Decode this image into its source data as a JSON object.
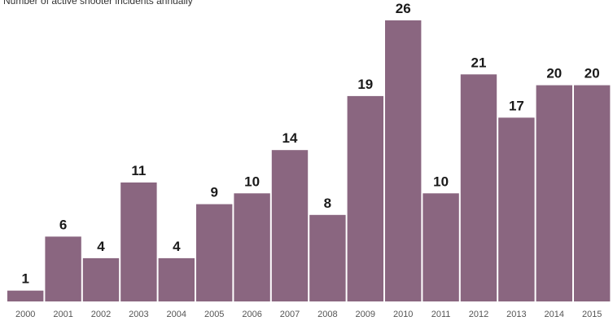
{
  "chart_data": {
    "type": "bar",
    "title": "Number of active shooter incidents annually",
    "xlabel": "",
    "ylabel": "",
    "categories": [
      "2000",
      "2001",
      "2002",
      "2003",
      "2004",
      "2005",
      "2006",
      "2007",
      "2008",
      "2009",
      "2010",
      "2011",
      "2012",
      "2013",
      "2014",
      "2015"
    ],
    "values": [
      1,
      6,
      4,
      11,
      4,
      9,
      10,
      14,
      8,
      19,
      26,
      10,
      21,
      17,
      20,
      20
    ],
    "ylim": [
      0,
      26
    ],
    "grid": false,
    "legend": "none",
    "bar_color": "#8a6680",
    "data_labels": true
  }
}
